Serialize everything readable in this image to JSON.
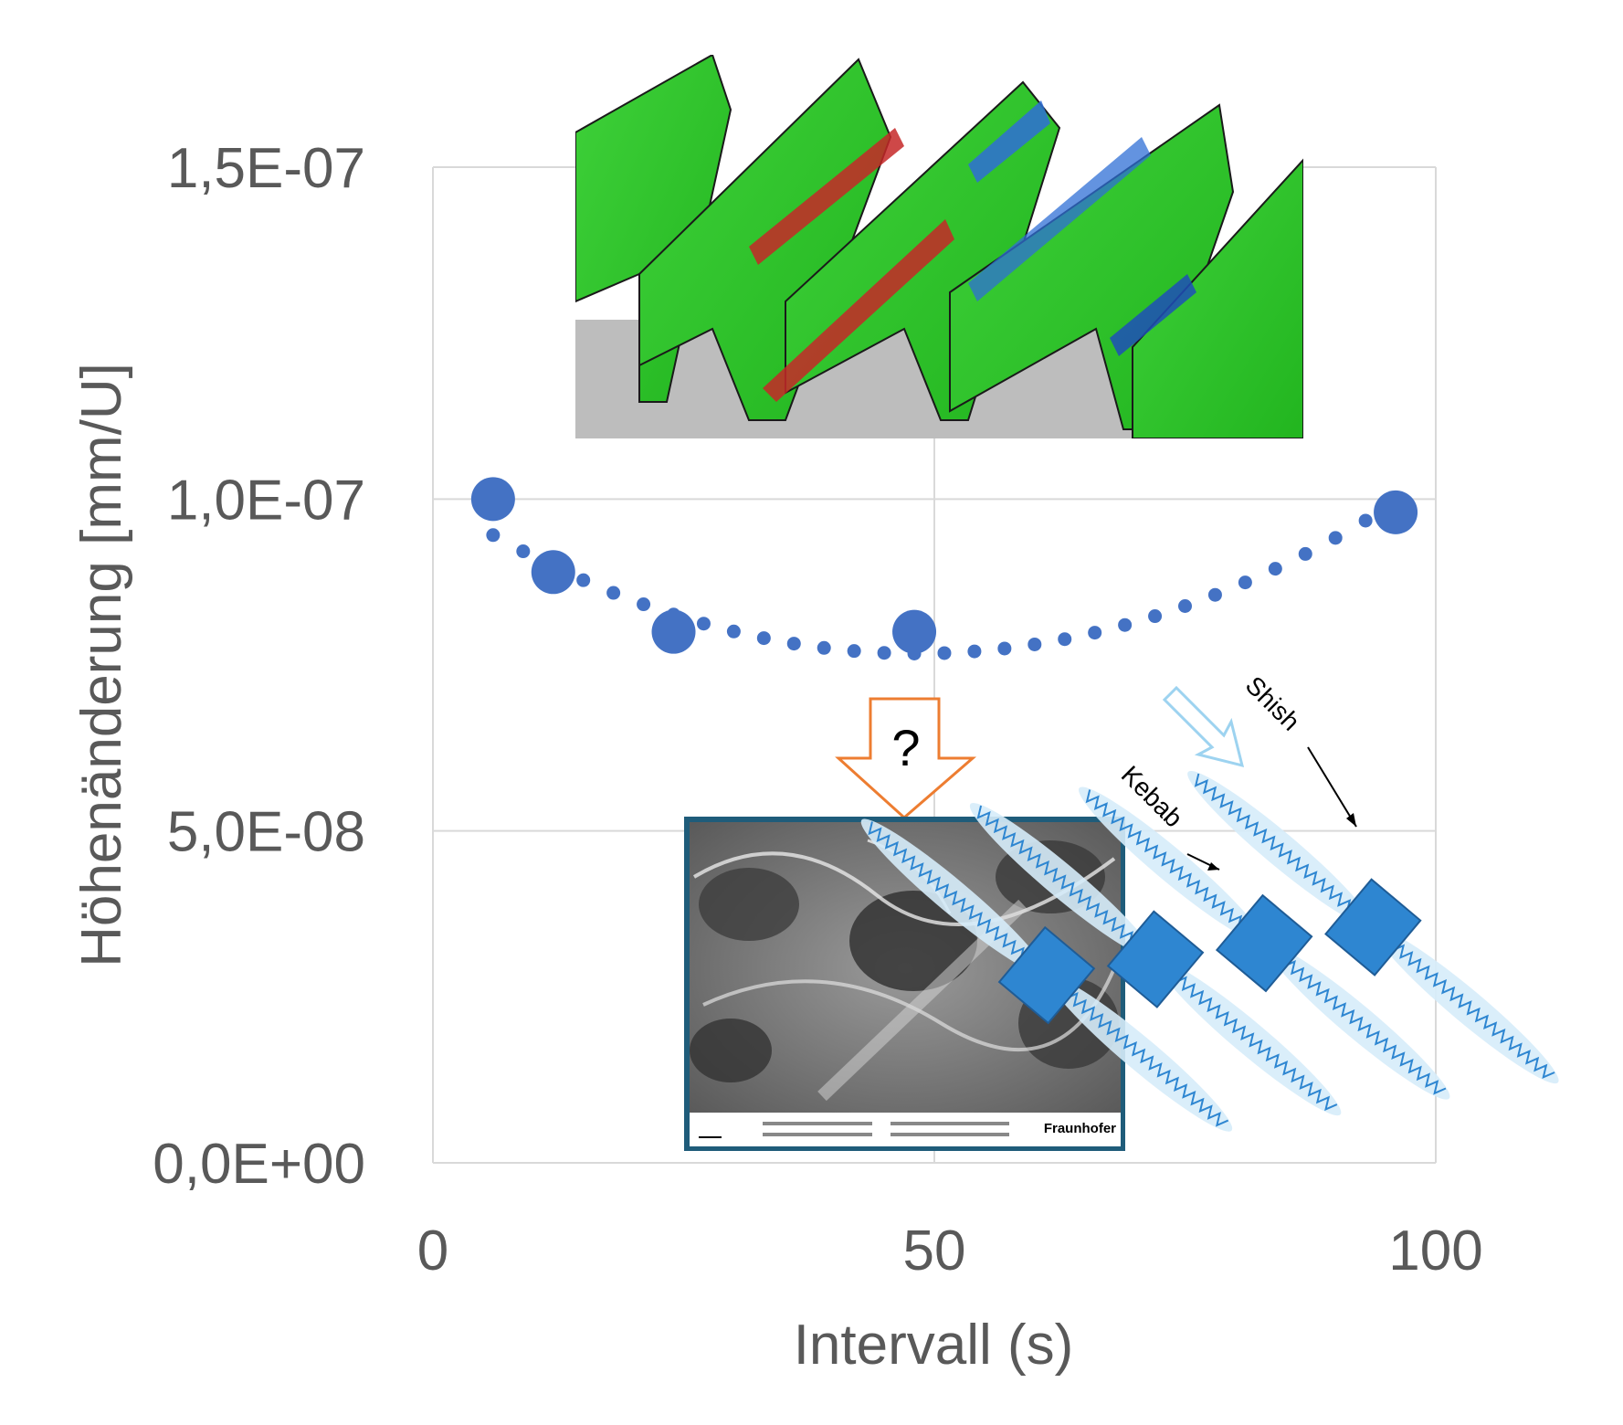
{
  "chart_data": {
    "type": "scatter",
    "xlabel": "Intervall (s)",
    "ylabel": "Höhenänderung [mm/U]",
    "xlim": [
      0,
      100
    ],
    "ylim": [
      0,
      1.5e-07
    ],
    "x_ticks": [
      0,
      50,
      100
    ],
    "x_tick_labels": [
      "0",
      "50",
      "100"
    ],
    "y_ticks": [
      0,
      5e-08,
      1e-07,
      1.5e-07
    ],
    "y_tick_labels": [
      "0,0E+00",
      "5,0E-08",
      "1,0E-07",
      "1,5E-07"
    ],
    "grid": true,
    "series": [
      {
        "x": [
          6,
          12,
          24,
          48,
          96
        ],
        "y": [
          1e-07,
          8.9e-08,
          8e-08,
          8e-08,
          9.8e-08
        ],
        "color": "#4472C4",
        "trendline": "polynomial-2-dotted"
      }
    ],
    "trendline_coefficients": {
      "a": 1e-11,
      "b": -9.65e-10,
      "c": 1e-07
    },
    "annotations": {
      "question_mark": "?",
      "shish_label": "Shish",
      "kebab_label": "Kebab",
      "sem_logo_text": "Fraunhofer"
    }
  },
  "colors": {
    "marker": "#4472C4",
    "grid": "#D9D9D9",
    "text": "#595959",
    "arrow_orange": "#ED7D31",
    "frame_teal": "#1F5C7A",
    "shishkebab": "#2E86D1"
  },
  "images": {
    "top": "fem-tooth-contact-simulation",
    "bottom": "sem-micrograph",
    "right": "shish-kebab-structure-diagram"
  }
}
